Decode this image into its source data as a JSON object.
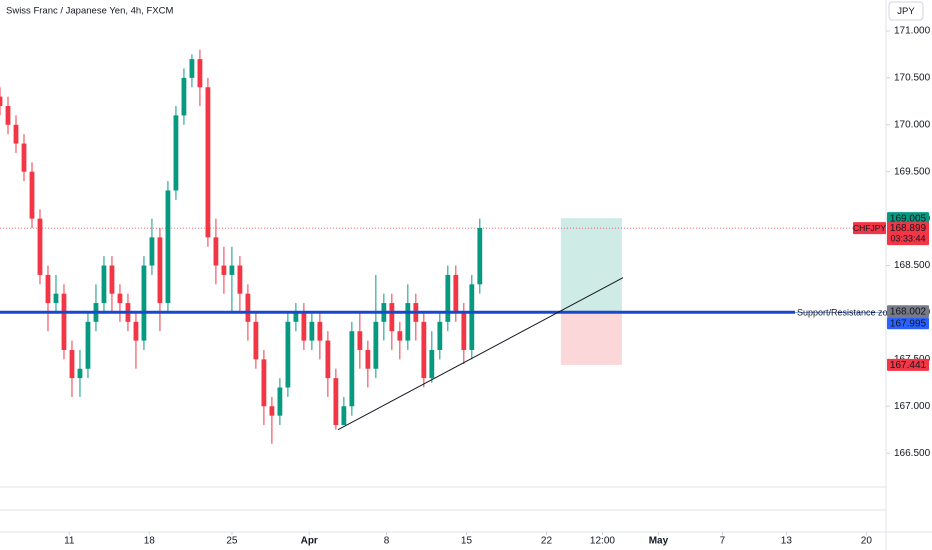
{
  "chart_data": {
    "type": "candlestick",
    "title": "Swiss Franc / Japanese Yen, 4h, FXCM",
    "currency": "JPY",
    "up_color": "#089981",
    "down_color": "#f23645",
    "x": [
      0,
      3,
      6,
      9,
      12,
      15,
      18,
      21,
      24,
      27,
      30,
      33,
      36,
      39,
      42,
      45,
      48,
      51,
      54,
      57,
      60,
      63,
      66,
      69,
      72,
      75,
      78,
      81,
      84,
      87,
      90,
      93,
      96,
      99,
      102,
      105,
      108,
      111,
      114,
      117,
      120,
      123,
      126,
      129,
      132,
      135,
      138,
      141,
      144,
      147,
      150,
      153,
      156,
      159,
      162,
      165,
      168,
      171,
      174,
      177,
      180
    ],
    "open": [
      170.3,
      170.2,
      170.0,
      169.8,
      169.5,
      169.0,
      168.4,
      168.1,
      168.2,
      167.6,
      167.3,
      167.4,
      167.9,
      168.1,
      168.5,
      168.2,
      168.1,
      167.9,
      167.7,
      168.5,
      168.8,
      168.1,
      169.3,
      170.1,
      170.5,
      170.7,
      170.4,
      168.8,
      168.5,
      168.4,
      168.5,
      168.2,
      167.9,
      167.5,
      167.0,
      166.9,
      167.2,
      167.9,
      168.0,
      167.7,
      167.9,
      167.7,
      167.3,
      166.8,
      167.0,
      167.8,
      167.6,
      167.4,
      167.9,
      168.1,
      167.8,
      167.7,
      168.1,
      167.9,
      167.3,
      167.6,
      167.9,
      168.4,
      168.0,
      167.6,
      168.3
    ],
    "high": [
      170.4,
      170.3,
      170.1,
      169.9,
      169.6,
      169.1,
      168.5,
      168.4,
      168.3,
      167.7,
      167.6,
      168.0,
      168.3,
      168.6,
      168.6,
      168.3,
      168.2,
      168.0,
      168.6,
      169.0,
      168.9,
      169.4,
      170.2,
      170.6,
      170.75,
      170.8,
      170.5,
      169.0,
      168.7,
      168.7,
      168.6,
      168.3,
      168.0,
      167.6,
      167.1,
      167.3,
      168.0,
      168.1,
      168.1,
      168.0,
      168.0,
      167.8,
      167.4,
      167.1,
      167.9,
      168.0,
      167.7,
      168.4,
      168.2,
      168.2,
      167.9,
      168.3,
      168.2,
      168.0,
      167.8,
      168.0,
      168.5,
      168.5,
      168.1,
      168.4,
      169.0
    ],
    "low": [
      170.1,
      169.9,
      169.7,
      169.4,
      168.9,
      168.3,
      167.8,
      168.0,
      167.5,
      167.1,
      167.1,
      167.3,
      167.8,
      168.0,
      168.0,
      167.9,
      167.8,
      167.4,
      167.6,
      168.4,
      167.8,
      168.0,
      169.2,
      170.0,
      170.4,
      170.2,
      168.7,
      168.3,
      168.2,
      168.0,
      168.0,
      167.7,
      167.4,
      166.8,
      166.6,
      166.8,
      167.1,
      167.8,
      167.6,
      167.6,
      167.5,
      167.1,
      166.75,
      166.8,
      166.9,
      167.4,
      167.2,
      167.3,
      167.7,
      167.6,
      167.5,
      167.6,
      167.7,
      167.2,
      167.25,
      167.5,
      167.8,
      167.9,
      167.45,
      167.5,
      168.2
    ],
    "close": [
      170.2,
      170.0,
      169.8,
      169.5,
      169.0,
      168.4,
      168.1,
      168.2,
      167.6,
      167.3,
      167.4,
      167.9,
      168.1,
      168.5,
      168.2,
      168.1,
      167.9,
      167.7,
      168.5,
      168.8,
      168.1,
      169.3,
      170.1,
      170.5,
      170.7,
      170.4,
      168.8,
      168.5,
      168.4,
      168.5,
      168.2,
      167.9,
      167.5,
      167.0,
      166.9,
      167.2,
      167.9,
      168.0,
      167.7,
      167.9,
      167.7,
      167.3,
      166.8,
      167.0,
      167.8,
      167.6,
      167.4,
      167.9,
      168.1,
      167.8,
      167.7,
      168.1,
      167.9,
      167.3,
      167.6,
      167.9,
      168.4,
      168.0,
      167.6,
      168.3,
      168.9
    ],
    "xlim": [
      0,
      332
    ],
    "xticks": [
      {
        "value": 26,
        "label": "11"
      },
      {
        "value": 56,
        "label": "18"
      },
      {
        "value": 87,
        "label": "25"
      },
      {
        "value": 116,
        "label": "Apr"
      },
      {
        "value": 145,
        "label": "8"
      },
      {
        "value": 175,
        "label": "15"
      },
      {
        "value": 205,
        "label": "22"
      },
      {
        "value": 226,
        "label": "12:00"
      },
      {
        "value": 247,
        "label": "May"
      },
      {
        "value": 271,
        "label": "7"
      },
      {
        "value": 295,
        "label": "13"
      },
      {
        "value": 325,
        "label": "20"
      }
    ],
    "ylim": [
      165.66,
      171.33
    ],
    "yticks": [
      {
        "value": 171,
        "label": "171.000"
      },
      {
        "value": 170.5,
        "label": "170.500"
      },
      {
        "value": 170,
        "label": "170.000"
      },
      {
        "value": 169.5,
        "label": "169.500"
      },
      {
        "value": 169,
        "label": "169.000"
      },
      {
        "value": 168.5,
        "label": "168.500"
      },
      {
        "value": 168,
        "label": "168.000"
      },
      {
        "value": 167.5,
        "label": "167.500"
      },
      {
        "value": 167,
        "label": "167.000"
      },
      {
        "value": 166.5,
        "label": "166.500"
      }
    ],
    "grid": false,
    "support": {
      "name": "Support/Resistance zone",
      "value": 168.002,
      "color": "#1848cc"
    },
    "position": {
      "x": [
        210.4,
        233.3
      ],
      "target": 169.005,
      "entry": 167.995,
      "stop": 167.441
    },
    "trendline": {
      "x": [
        126.8,
        233.7
      ],
      "y": [
        166.75,
        168.37
      ]
    },
    "last": {
      "symbol": "CHFJPY",
      "value": 168.899,
      "countdown": "03:33:44"
    }
  }
}
